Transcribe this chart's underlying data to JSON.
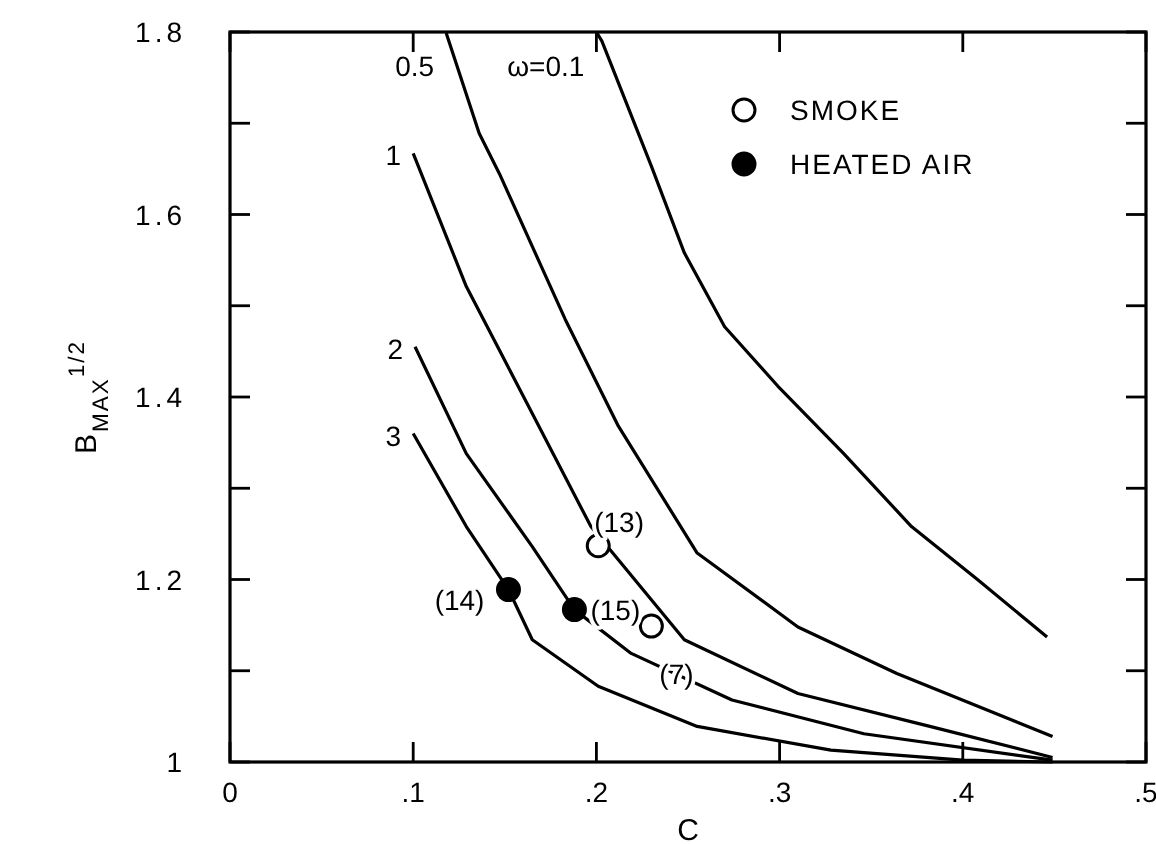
{
  "chart_data": {
    "type": "line",
    "xlabel": "C",
    "ylabel": "B$_{MAX}$$^{1/2}$",
    "xlim": [
      0,
      0.5
    ],
    "ylim": [
      1,
      1.8
    ],
    "xticks": [
      {
        "value": 0,
        "label": "0"
      },
      {
        "value": 0.1,
        "label": ".1"
      },
      {
        "value": 0.2,
        "label": ".2"
      },
      {
        "value": 0.3,
        "label": ".3"
      },
      {
        "value": 0.4,
        "label": ".4"
      },
      {
        "value": 0.5,
        "label": ".5"
      }
    ],
    "yticks": [
      1,
      {
        "value": 1.1,
        "label": null
      },
      1.2,
      {
        "value": 1.3,
        "label": null
      },
      1.4,
      {
        "value": 1.5,
        "label": null
      },
      1.6,
      {
        "value": 1.7,
        "label": null
      },
      1.8
    ],
    "grid": false,
    "legend": "top right",
    "marker": "none",
    "line_style": "solid",
    "series": [
      {
        "name": "ω=0.1",
        "color": "#000000",
        "x": [
          0.2,
          0.203,
          0.23,
          0.248,
          0.27,
          0.299,
          0.335,
          0.372,
          0.408,
          0.446
        ],
        "values": [
          1.8,
          1.79,
          1.653,
          1.558,
          1.477,
          1.412,
          1.338,
          1.258,
          1.2,
          1.137
        ]
      },
      {
        "name": "0.5",
        "color": "#000000",
        "x": [
          0.118,
          0.136,
          0.147,
          0.183,
          0.212,
          0.255,
          0.31,
          0.364,
          0.449
        ],
        "values": [
          1.799,
          1.689,
          1.645,
          1.485,
          1.368,
          1.229,
          1.148,
          1.097,
          1.028
        ]
      },
      {
        "name": "1",
        "color": "#000000",
        "x": [
          0.1,
          0.129,
          0.165,
          0.197,
          0.248,
          0.31,
          0.382,
          0.449
        ],
        "values": [
          1.667,
          1.521,
          1.382,
          1.258,
          1.134,
          1.075,
          1.039,
          1.005
        ]
      },
      {
        "name": "2",
        "color": "#000000",
        "x": [
          0.101,
          0.129,
          0.165,
          0.188,
          0.219,
          0.274,
          0.346,
          0.449
        ],
        "values": [
          1.455,
          1.338,
          1.236,
          1.167,
          1.119,
          1.068,
          1.031,
          1.002
        ]
      },
      {
        "name": "3",
        "color": "#000000",
        "x": [
          0.1,
          0.129,
          0.152,
          0.165,
          0.201,
          0.255,
          0.328,
          0.4,
          0.449
        ],
        "values": [
          1.36,
          1.258,
          1.189,
          1.134,
          1.083,
          1.039,
          1.013,
          1.002,
          1.0
        ]
      },
      {
        "name": "SMOKE",
        "type": "scatter",
        "marker": "circle",
        "color": "#ffffff",
        "x": [
          0.201,
          0.23
        ],
        "values": [
          1.237,
          1.149
        ]
      },
      {
        "name": "HEATED AIR",
        "type": "scatter",
        "marker": "circle",
        "color": "#000000",
        "x": [
          0.152,
          0.188
        ],
        "values": [
          1.189,
          1.167
        ]
      }
    ],
    "annotations": [
      {
        "text": "(13)",
        "x": 0.201,
        "y": 1.237
      },
      {
        "text": "(15)",
        "x": 0.188,
        "y": 1.167
      },
      {
        "text": "(7)",
        "x": 0.23,
        "y": 1.149
      },
      {
        "text": "(14)",
        "x": 0.152,
        "y": 1.189
      }
    ]
  }
}
